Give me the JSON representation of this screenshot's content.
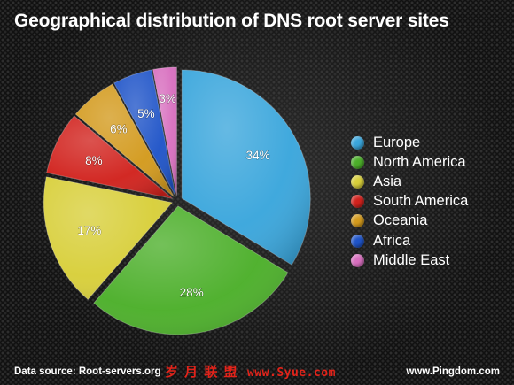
{
  "chart_data": {
    "type": "pie",
    "title": "Geographical distribution of DNS root server sites",
    "categories": [
      "Europe",
      "North America",
      "Asia",
      "South America",
      "Oceania",
      "Africa",
      "Middle East"
    ],
    "values": [
      34,
      28,
      17,
      8,
      6,
      5,
      3
    ],
    "labels": [
      "34%",
      "28%",
      "17%",
      "8%",
      "6%",
      "5%",
      "3%"
    ],
    "colors": [
      "#3aa6dc",
      "#4caf2a",
      "#d8cf3a",
      "#d1221d",
      "#d39a1d",
      "#1f54c8",
      "#d86fbf"
    ],
    "legend_position": "right",
    "exploded": true
  },
  "footer": {
    "source": "Data source: Root-servers.org",
    "watermark_cn": "岁 月 联 盟",
    "watermark_site": "www.Syue.com",
    "credit": "www.Pingdom.com"
  }
}
